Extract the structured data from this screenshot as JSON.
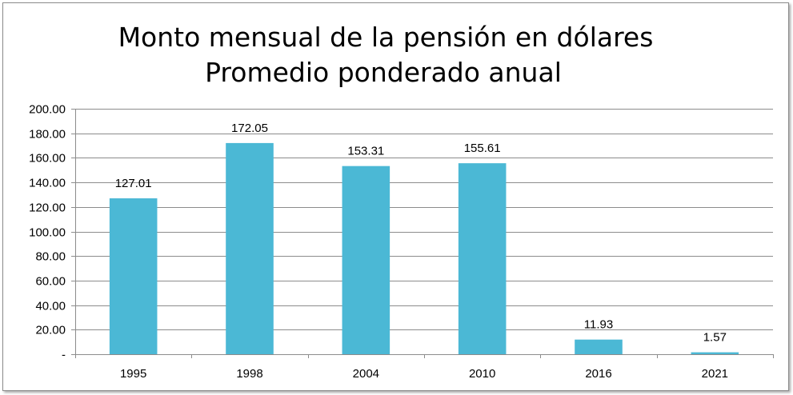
{
  "chart_data": {
    "type": "bar",
    "title": "Monto  mensual de la pensión en dólares",
    "subtitle": "Promedio ponderado anual",
    "xlabel": "",
    "ylabel": "",
    "categories": [
      "1995",
      "1998",
      "2004",
      "2010",
      "2016",
      "2021"
    ],
    "values": [
      127.01,
      172.05,
      153.31,
      155.61,
      11.93,
      1.57
    ],
    "value_labels": [
      "127.01",
      "172.05",
      "153.31",
      "155.61",
      "11.93",
      "1.57"
    ],
    "ylim": [
      0,
      200
    ],
    "y_ticks": [
      0,
      20,
      40,
      60,
      80,
      100,
      120,
      140,
      160,
      180,
      200
    ],
    "y_tick_labels": [
      "-",
      "20.00",
      "40.00",
      "60.00",
      "80.00",
      "100.00",
      "120.00",
      "140.00",
      "160.00",
      "180.00",
      "200.00"
    ],
    "bar_color": "#4bb8d5",
    "grid": true,
    "legend": "none"
  }
}
